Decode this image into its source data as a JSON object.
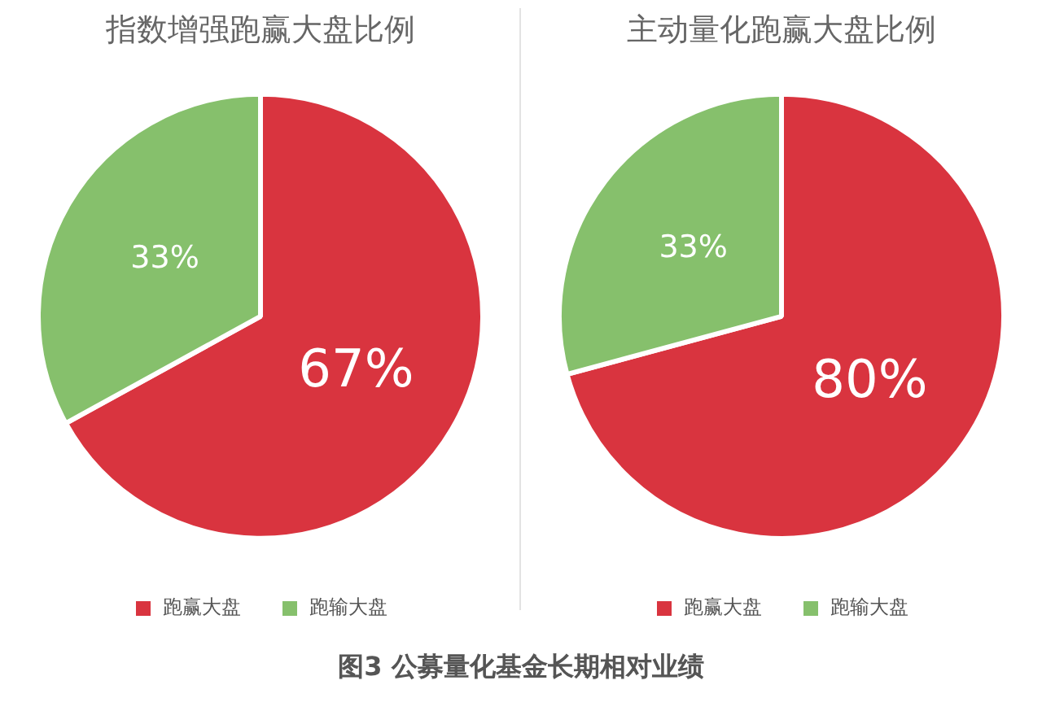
{
  "chart_data": [
    {
      "type": "pie",
      "title": "指数增强跑赢大盘比例",
      "categories": [
        "跑赢大盘",
        "跑输大盘"
      ],
      "values": [
        67,
        33
      ],
      "value_labels": [
        "67%",
        "33%"
      ],
      "colors": [
        "#d9343f",
        "#86c06c"
      ],
      "legend": "bottom"
    },
    {
      "type": "pie",
      "title": "主动量化跑赢大盘比例",
      "categories": [
        "跑赢大盘",
        "跑输大盘"
      ],
      "values": [
        80,
        33
      ],
      "value_labels": [
        "80%",
        "33%"
      ],
      "colors": [
        "#d9343f",
        "#86c06c"
      ],
      "legend": "bottom",
      "annotations": [
        "图3 公募量化基金长期相对业绩"
      ]
    }
  ]
}
